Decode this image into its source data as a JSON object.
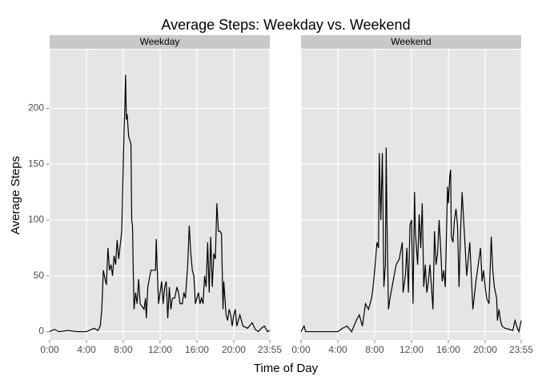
{
  "title": "Average Steps: Weekday vs. Weekend",
  "xlabel": "Time of Day",
  "ylabel": "Average Steps",
  "chart_data": [
    {
      "type": "line",
      "facet": "Weekday",
      "color": "#000000",
      "grid": true,
      "x": [
        0,
        30,
        60,
        120,
        180,
        240,
        290,
        315,
        330,
        340,
        350,
        360,
        370,
        380,
        390,
        400,
        410,
        420,
        430,
        440,
        450,
        470,
        485,
        490,
        495,
        500,
        505,
        515,
        530,
        535,
        540,
        545,
        550,
        560,
        570,
        580,
        590,
        600,
        615,
        625,
        630,
        640,
        660,
        690,
        695,
        700,
        710,
        720,
        730,
        740,
        750,
        760,
        770,
        780,
        790,
        800,
        815,
        830,
        840,
        850,
        865,
        875,
        885,
        900,
        910,
        920,
        930,
        940,
        950,
        960,
        970,
        980,
        990,
        1000,
        1010,
        1020,
        1030,
        1040,
        1050,
        1060,
        1070,
        1080,
        1090,
        1100,
        1110,
        1120,
        1130,
        1135,
        1140,
        1150,
        1160,
        1170,
        1180,
        1190,
        1200,
        1210,
        1220,
        1230,
        1240,
        1260,
        1290,
        1320,
        1340,
        1360,
        1380,
        1400,
        1420,
        1435
      ],
      "values": [
        0,
        2,
        0,
        1,
        0,
        0,
        3,
        1,
        5,
        20,
        55,
        48,
        42,
        75,
        55,
        60,
        50,
        68,
        60,
        82,
        65,
        90,
        180,
        200,
        230,
        190,
        195,
        175,
        168,
        100,
        95,
        55,
        20,
        35,
        25,
        47,
        25,
        23,
        20,
        30,
        12,
        40,
        55,
        55,
        83,
        60,
        25,
        35,
        45,
        25,
        40,
        45,
        12,
        40,
        20,
        30,
        30,
        40,
        35,
        25,
        25,
        35,
        30,
        60,
        95,
        70,
        55,
        50,
        25,
        30,
        35,
        25,
        30,
        25,
        50,
        40,
        80,
        35,
        85,
        40,
        70,
        65,
        115,
        90,
        90,
        88,
        20,
        45,
        35,
        15,
        10,
        20,
        15,
        5,
        15,
        20,
        5,
        10,
        15,
        5,
        3,
        8,
        2,
        0,
        3,
        5,
        0,
        1
      ],
      "xlim": [
        0,
        1435
      ],
      "ylim": [
        -7.5,
        252.7
      ],
      "xticks": [
        {
          "value": 0,
          "label": "0:00"
        },
        {
          "value": 240,
          "label": "4:00"
        },
        {
          "value": 480,
          "label": "8:00"
        },
        {
          "value": 720,
          "label": "12:00"
        },
        {
          "value": 960,
          "label": "16:00"
        },
        {
          "value": 1200,
          "label": "20:00"
        },
        {
          "value": 1435,
          "label": "23:55"
        }
      ],
      "yticks": [
        0,
        50,
        100,
        150,
        200
      ]
    },
    {
      "type": "line",
      "facet": "Weekend",
      "color": "#000000",
      "grid": true,
      "x": [
        0,
        20,
        30,
        120,
        200,
        240,
        270,
        300,
        330,
        360,
        380,
        400,
        420,
        440,
        460,
        470,
        480,
        495,
        505,
        510,
        520,
        530,
        540,
        550,
        555,
        560,
        570,
        580,
        600,
        620,
        640,
        660,
        665,
        680,
        690,
        700,
        710,
        720,
        730,
        740,
        745,
        760,
        770,
        780,
        790,
        800,
        810,
        820,
        830,
        840,
        860,
        870,
        880,
        890,
        900,
        910,
        920,
        930,
        940,
        955,
        960,
        970,
        975,
        980,
        990,
        1000,
        1010,
        1020,
        1030,
        1040,
        1050,
        1060,
        1070,
        1080,
        1090,
        1100,
        1110,
        1120,
        1140,
        1170,
        1180,
        1190,
        1200,
        1210,
        1225,
        1240,
        1250,
        1260,
        1275,
        1280,
        1290,
        1300,
        1310,
        1330,
        1360,
        1380,
        1395,
        1410,
        1420,
        1435
      ],
      "values": [
        0,
        5,
        0,
        0,
        0,
        0,
        3,
        5,
        0,
        10,
        15,
        5,
        25,
        20,
        30,
        40,
        55,
        80,
        75,
        160,
        100,
        160,
        40,
        60,
        165,
        100,
        20,
        30,
        45,
        60,
        65,
        80,
        35,
        50,
        75,
        35,
        95,
        100,
        25,
        125,
        90,
        60,
        105,
        75,
        115,
        40,
        60,
        35,
        45,
        60,
        20,
        90,
        60,
        70,
        100,
        75,
        45,
        55,
        40,
        130,
        115,
        140,
        145,
        85,
        80,
        100,
        110,
        95,
        40,
        90,
        125,
        100,
        75,
        50,
        65,
        80,
        50,
        20,
        45,
        75,
        45,
        55,
        40,
        30,
        25,
        85,
        55,
        40,
        30,
        10,
        20,
        10,
        5,
        3,
        2,
        1,
        10,
        3,
        0,
        10
      ],
      "xlim": [
        0,
        1435
      ],
      "ylim": [
        -7.5,
        252.7
      ],
      "xticks": [
        {
          "value": 0,
          "label": "0:00"
        },
        {
          "value": 240,
          "label": "4:00"
        },
        {
          "value": 480,
          "label": "8:00"
        },
        {
          "value": 720,
          "label": "12:00"
        },
        {
          "value": 960,
          "label": "16:00"
        },
        {
          "value": 1200,
          "label": "20:00"
        },
        {
          "value": 1435,
          "label": "23:55"
        }
      ],
      "yticks": [
        0,
        50,
        100,
        150,
        200
      ]
    }
  ]
}
